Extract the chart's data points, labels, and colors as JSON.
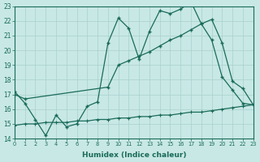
{
  "xlabel": "Humidex (Indice chaleur)",
  "xlim": [
    0,
    23
  ],
  "ylim": [
    14,
    23
  ],
  "bg_color": "#c8e8e5",
  "grid_color": "#a8d0cd",
  "line_color": "#1a6b5a",
  "line1_x": [
    0,
    1,
    2,
    3,
    4,
    5,
    6,
    7,
    8,
    9,
    10,
    11,
    12,
    13,
    14,
    15,
    16,
    17,
    18,
    19,
    20,
    21,
    22,
    23
  ],
  "line1_y": [
    17.2,
    16.4,
    15.3,
    14.2,
    15.6,
    14.8,
    15.0,
    16.2,
    16.5,
    20.5,
    22.2,
    21.5,
    19.4,
    21.3,
    22.7,
    22.5,
    22.8,
    23.3,
    21.8,
    20.7,
    18.2,
    17.3,
    16.4,
    16.3
  ],
  "line2_x": [
    0,
    1,
    9,
    10,
    11,
    12,
    13,
    14,
    15,
    16,
    17,
    18,
    19,
    20,
    21,
    22,
    23
  ],
  "line2_y": [
    17.0,
    16.7,
    17.5,
    19.0,
    19.3,
    19.6,
    19.9,
    20.3,
    20.7,
    21.0,
    21.4,
    21.8,
    22.1,
    20.5,
    17.9,
    17.4,
    16.3
  ],
  "line3_x": [
    0,
    1,
    2,
    3,
    4,
    5,
    6,
    7,
    8,
    9,
    10,
    11,
    12,
    13,
    14,
    15,
    16,
    17,
    18,
    19,
    20,
    21,
    22,
    23
  ],
  "line3_y": [
    14.9,
    15.0,
    15.0,
    15.1,
    15.1,
    15.1,
    15.2,
    15.2,
    15.3,
    15.3,
    15.4,
    15.4,
    15.5,
    15.5,
    15.6,
    15.6,
    15.7,
    15.8,
    15.8,
    15.9,
    16.0,
    16.1,
    16.2,
    16.3
  ]
}
